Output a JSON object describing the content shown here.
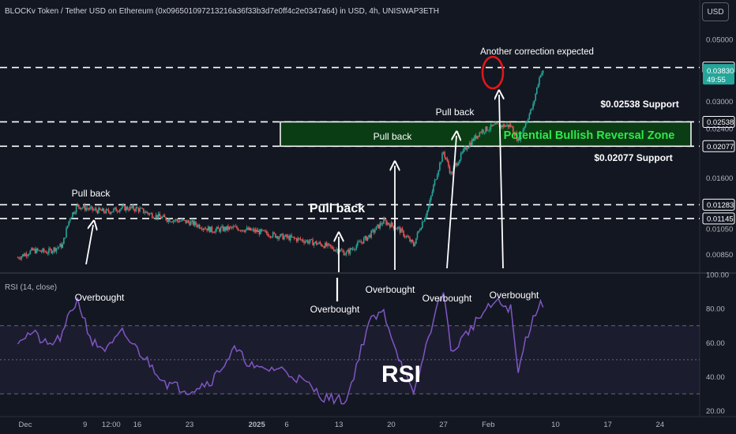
{
  "header": {
    "title": "BLOCKv Token / Tether USD on Ethereum (0x096501097213216a36f33b3d7e0ff4c2e0347a64) in USD, 4h, UNISWAP3ETH",
    "currency_button": "USD"
  },
  "rsi_indicator_label": "RSI (14, close)",
  "colors": {
    "background": "#131722",
    "up_candle": "#26a69a",
    "down_candle": "#ef5350",
    "rsi_line": "#7e57c2",
    "zone_fill": "#0b3d14",
    "zone_text": "#2ee84a",
    "annotation": "#ffffff",
    "circle": "#e0161b"
  },
  "chart_data": [
    {
      "type": "candlestick",
      "title": "",
      "y_scale": "log",
      "ylim": [
        0.0075,
        0.057
      ],
      "y_ticks": [
        "0.05000",
        "0.03000",
        "0.01600",
        "0.01050",
        "0.00850"
      ],
      "x_ticks": [
        "Dec",
        "9",
        "12:00",
        "16",
        "23",
        "2025",
        "6",
        "13",
        "20",
        "27",
        "Feb",
        "10",
        "17",
        "24"
      ],
      "price_labels": [
        {
          "value": "0.03972",
          "style": "outlined"
        },
        {
          "value": "0.03830",
          "countdown": "49:55",
          "style": "current"
        },
        {
          "value": "0.02538",
          "style": "outlined"
        },
        {
          "value": "0.02400",
          "style": "muted"
        },
        {
          "value": "0.02077",
          "style": "outlined"
        },
        {
          "value": "0.01283",
          "style": "outlined"
        },
        {
          "value": "0.01145",
          "style": "outlined"
        }
      ],
      "horizontal_levels": [
        0.03972,
        0.02538,
        0.02077,
        0.01283,
        0.01145
      ],
      "path_points": [
        [
          "Nov 30",
          0.0083
        ],
        [
          "Dec 2",
          0.0088
        ],
        [
          "Dec 4",
          0.0087
        ],
        [
          "Dec 6",
          0.0092
        ],
        [
          "Dec 7",
          0.0116
        ],
        [
          "Dec 8",
          0.0127
        ],
        [
          "Dec 10",
          0.0123
        ],
        [
          "Dec 12",
          0.0121
        ],
        [
          "Dec 14",
          0.0125
        ],
        [
          "Dec 16",
          0.0124
        ],
        [
          "Dec 18",
          0.0118
        ],
        [
          "Dec 20",
          0.0114
        ],
        [
          "Dec 23",
          0.0111
        ],
        [
          "Dec 26",
          0.0104
        ],
        [
          "Dec 29",
          0.0106
        ],
        [
          "Jan 1",
          0.0103
        ],
        [
          "Jan 4",
          0.0099
        ],
        [
          "Jan 7",
          0.0096
        ],
        [
          "Jan 10",
          0.0092
        ],
        [
          "Jan 13",
          0.0086
        ],
        [
          "Jan 16",
          0.0099
        ],
        [
          "Jan 18",
          0.0112
        ],
        [
          "Jan 20",
          0.0105
        ],
        [
          "Jan 22",
          0.0092
        ],
        [
          "Jan 24",
          0.0125
        ],
        [
          "Jan 26",
          0.0198
        ],
        [
          "Jan 27",
          0.0165
        ],
        [
          "Jan 29",
          0.0205
        ],
        [
          "Jan 31",
          0.0235
        ],
        [
          "Feb 2",
          0.0246
        ],
        [
          "Feb 4",
          0.0246
        ],
        [
          "Feb 5",
          0.0218
        ],
        [
          "Feb 6",
          0.0252
        ],
        [
          "Feb 7",
          0.029
        ],
        [
          "Feb 8",
          0.038
        ],
        [
          "Feb 8.5",
          0.0383
        ]
      ],
      "annotations": [
        {
          "text": "Another correction expected",
          "style": "text"
        },
        {
          "text": "$0.02538 Support",
          "style": "text"
        },
        {
          "text": "$0.02077 Support",
          "style": "text"
        },
        {
          "text": "Potential Bullish Reversal Zone",
          "style": "zone"
        },
        {
          "text": "Pull back",
          "style": "text"
        },
        {
          "text": "Pull back",
          "style": "text"
        },
        {
          "text": "Pull back",
          "style": "text-large"
        },
        {
          "text": "Pull back",
          "style": "text"
        }
      ]
    },
    {
      "type": "line",
      "title": "RSI (14, close)",
      "ylim": [
        18,
        100
      ],
      "y_ticks": [
        "100.00",
        "80.00",
        "60.00",
        "40.00",
        "20.00"
      ],
      "bands": [
        70,
        50,
        30
      ],
      "path_points": [
        [
          "Nov 30",
          62
        ],
        [
          "Dec 2",
          66
        ],
        [
          "Dec 4",
          58
        ],
        [
          "Dec 6",
          64
        ],
        [
          "Dec 7",
          78
        ],
        [
          "Dec 8",
          85
        ],
        [
          "Dec 10",
          60
        ],
        [
          "Dec 12",
          56
        ],
        [
          "Dec 14",
          66
        ],
        [
          "Dec 16",
          56
        ],
        [
          "Dec 18",
          46
        ],
        [
          "Dec 20",
          36
        ],
        [
          "Dec 23",
          32
        ],
        [
          "Dec 26",
          38
        ],
        [
          "Dec 29",
          56
        ],
        [
          "Jan 1",
          44
        ],
        [
          "Jan 4",
          45
        ],
        [
          "Jan 7",
          38
        ],
        [
          "Jan 10",
          28
        ],
        [
          "Jan 13",
          26
        ],
        [
          "Jan 16",
          72
        ],
        [
          "Jan 18",
          78
        ],
        [
          "Jan 20",
          52
        ],
        [
          "Jan 22",
          28
        ],
        [
          "Jan 24",
          64
        ],
        [
          "Jan 26",
          92
        ],
        [
          "Jan 27",
          54
        ],
        [
          "Jan 29",
          65
        ],
        [
          "Jan 31",
          76
        ],
        [
          "Feb 2",
          84
        ],
        [
          "Feb 4",
          80
        ],
        [
          "Feb 5",
          42
        ],
        [
          "Feb 6",
          62
        ],
        [
          "Feb 7",
          74
        ],
        [
          "Feb 8",
          86
        ],
        [
          "Feb 8.5",
          79
        ]
      ],
      "annotations": [
        {
          "text": "Overbought"
        },
        {
          "text": "Overbought"
        },
        {
          "text": "Overbought"
        },
        {
          "text": "Overbought"
        },
        {
          "text": "Overbought"
        },
        {
          "text": "RSI"
        }
      ]
    }
  ]
}
